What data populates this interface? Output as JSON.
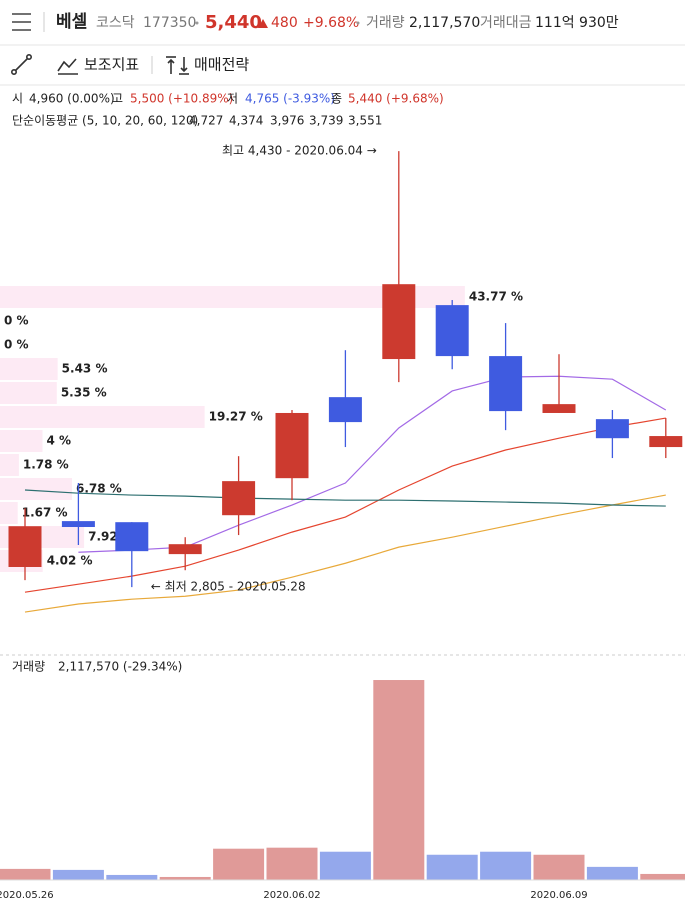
{
  "header": {
    "name": "베셀",
    "market": "코스닥",
    "code": "177350",
    "price": "5,440",
    "change": "480",
    "change_pct": "+9.68%",
    "volume_label": "거래량",
    "volume": "2,117,570",
    "amount_label": "거래대금",
    "amount": "111억 930만"
  },
  "toolbar": {
    "indicator": "보조지표",
    "strategy": "매매전략"
  },
  "info": {
    "open_label": "시",
    "open": "4,960 (0.00%)",
    "high_label": "고",
    "high": "5,500 (+10.89%)",
    "low_label": "저",
    "low": "4,765 (-3.93%)",
    "close_label": "종",
    "close": "5,440 (+9.68%)"
  },
  "ma_legend": {
    "label": "단순이동평균 (5, 10, 20, 60, 120)",
    "items": [
      {
        "text": "4,727",
        "color": "#9b6ee0"
      },
      {
        "text": "4,374",
        "color": "#e5452f"
      },
      {
        "text": "3,976",
        "color": "#e8a93a"
      },
      {
        "text": "3,739",
        "color": "#5aa55a"
      },
      {
        "text": "3,551",
        "color": "#2d7f8a"
      }
    ]
  },
  "chart_data": [
    {
      "type": "candlestick",
      "categories": [
        "2020.05.26",
        null,
        null,
        null,
        null,
        "2020.06.02",
        null,
        null,
        null,
        null,
        "2020.06.09",
        null,
        null
      ],
      "open": [
        2880,
        3051,
        3047,
        2928,
        3073,
        3211,
        3513,
        3655,
        3856,
        3666,
        3454,
        3431,
        3327
      ],
      "high": [
        3099,
        3193,
        3047,
        2991,
        3293,
        3465,
        3688,
        4430,
        3875,
        3789,
        3673,
        3465,
        3435
      ],
      "low": [
        2831,
        2962,
        2805,
        2868,
        2999,
        3129,
        3327,
        3569,
        3617,
        3390,
        3454,
        3286,
        3286
      ],
      "close": [
        3032,
        3029,
        2939,
        2965,
        3200,
        3454,
        3420,
        3934,
        3666,
        3461,
        3487,
        3360,
        3368
      ],
      "up_color": "#cc3a2f",
      "down_color": "#3f5be0",
      "ylim": [
        2552,
        4490
      ],
      "series": [
        {
          "color": "#a36ae6",
          "values": [
            null,
            2935,
            2943,
            2954,
            3036,
            3111,
            3193,
            3398,
            3536,
            3588,
            3591,
            3580,
            3465
          ]
        },
        {
          "color": "#e5452f",
          "values": [
            2786,
            2816,
            2846,
            2883,
            2943,
            3010,
            3066,
            3167,
            3256,
            3316,
            3360,
            3401,
            3435
          ]
        },
        {
          "color": "#e8a93a",
          "values": [
            2712,
            2742,
            2760,
            2771,
            2794,
            2842,
            2894,
            2954,
            2991,
            3032,
            3073,
            3111,
            3148
          ]
        },
        {
          "color": "#2d6f70",
          "values": [
            3167,
            3155,
            3148,
            3144,
            3137,
            3133,
            3129,
            3129,
            3126,
            3122,
            3118,
            3111,
            3107
          ]
        }
      ],
      "annotations": {
        "max": "최고 4,430 - 2020.06.04 →",
        "min": "← 최저 2,805 - 2020.05.28"
      }
    },
    {
      "type": "hbar",
      "values": [
        43.77,
        0,
        0,
        5.43,
        5.35,
        19.27,
        4,
        1.78,
        6.78,
        1.67,
        7.92,
        4.02
      ],
      "value_labels": [
        "43.77 %",
        "0 %",
        "0 %",
        "5.43 %",
        "5.35 %",
        "19.27 %",
        "4 %",
        "1.78 %",
        "6.78 %",
        "1.67 %",
        "7.92 %",
        "4.02 %"
      ],
      "color": "#fdeaf4",
      "xlim": [
        0,
        64.5
      ]
    },
    {
      "type": "bar",
      "title": "거래량",
      "subtitle": "2,117,570 (-29.34%)",
      "values": [
        11,
        10,
        5,
        3,
        31,
        32,
        28,
        198,
        25,
        28,
        25,
        13,
        6
      ],
      "up_color": "#e09a98",
      "down_color": "#94a8ec",
      "ylim": [
        0,
        200
      ]
    }
  ]
}
